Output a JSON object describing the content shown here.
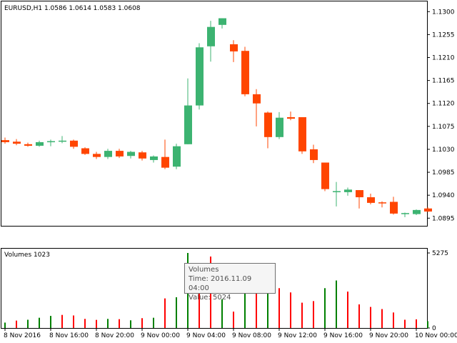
{
  "header": {
    "symbol_line": "EURUSD,H1  1.0586 1.0614 1.0583 1.0608",
    "volumes_label": "Volumes 1023"
  },
  "colors": {
    "bull": "#3cb371",
    "bear": "#ff4500",
    "volume_up": "#008000",
    "volume_down": "#ff0000",
    "frame": "#000000"
  },
  "tooltip": {
    "title": "Volumes",
    "time": "Time: 2016.11.09 04:00",
    "value": "Value: 5024"
  },
  "chart_data": {
    "type": "candlestick",
    "price_axis": {
      "ticks": [
        "1.1300",
        "1.1255",
        "1.1210",
        "1.1165",
        "1.1120",
        "1.1075",
        "1.1030",
        "1.0985",
        "1.0940",
        "1.0895"
      ],
      "range": [
        1.088,
        1.132
      ]
    },
    "volume_axis": {
      "ticks": [
        "5275",
        "0"
      ],
      "range": [
        0,
        5275
      ]
    },
    "time_labels": [
      "8 Nov 2016",
      "8 Nov 16:00",
      "8 Nov 20:00",
      "9 Nov 00:00",
      "9 Nov 04:00",
      "9 Nov 08:00",
      "9 Nov 12:00",
      "9 Nov 16:00",
      "9 Nov 20:00",
      "10 Nov 00:00"
    ],
    "candles": [
      {
        "o": 1.1048,
        "h": 1.1053,
        "l": 1.1041,
        "c": 1.1044
      },
      {
        "o": 1.1045,
        "h": 1.105,
        "l": 1.1038,
        "c": 1.1041
      },
      {
        "o": 1.104,
        "h": 1.1043,
        "l": 1.1035,
        "c": 1.1037
      },
      {
        "o": 1.1037,
        "h": 1.1047,
        "l": 1.1035,
        "c": 1.1044
      },
      {
        "o": 1.1045,
        "h": 1.1049,
        "l": 1.1036,
        "c": 1.1046
      },
      {
        "o": 1.1045,
        "h": 1.1056,
        "l": 1.1042,
        "c": 1.1047
      },
      {
        "o": 1.1047,
        "h": 1.1049,
        "l": 1.1031,
        "c": 1.1035
      },
      {
        "o": 1.1032,
        "h": 1.1034,
        "l": 1.1019,
        "c": 1.1021
      },
      {
        "o": 1.1021,
        "h": 1.1025,
        "l": 1.1011,
        "c": 1.1015
      },
      {
        "o": 1.1015,
        "h": 1.1031,
        "l": 1.1011,
        "c": 1.1027
      },
      {
        "o": 1.1027,
        "h": 1.1031,
        "l": 1.1013,
        "c": 1.1016
      },
      {
        "o": 1.1017,
        "h": 1.1027,
        "l": 1.1012,
        "c": 1.1025
      },
      {
        "o": 1.1024,
        "h": 1.1027,
        "l": 1.1008,
        "c": 1.1012
      },
      {
        "o": 1.1009,
        "h": 1.1018,
        "l": 1.1004,
        "c": 1.1016
      },
      {
        "o": 1.1015,
        "h": 1.1049,
        "l": 1.0991,
        "c": 1.0994
      },
      {
        "o": 1.0996,
        "h": 1.1041,
        "l": 1.0991,
        "c": 1.1036
      },
      {
        "o": 1.104,
        "h": 1.1169,
        "l": 1.104,
        "c": 1.1116
      },
      {
        "o": 1.1116,
        "h": 1.1238,
        "l": 1.1108,
        "c": 1.123
      },
      {
        "o": 1.1232,
        "h": 1.1282,
        "l": 1.1202,
        "c": 1.127
      },
      {
        "o": 1.1274,
        "h": 1.1287,
        "l": 1.1267,
        "c": 1.1287
      },
      {
        "o": 1.1236,
        "h": 1.1244,
        "l": 1.1201,
        "c": 1.1222
      },
      {
        "o": 1.1223,
        "h": 1.1231,
        "l": 1.1134,
        "c": 1.1138
      },
      {
        "o": 1.1138,
        "h": 1.1148,
        "l": 1.1075,
        "c": 1.112
      },
      {
        "o": 1.1102,
        "h": 1.1104,
        "l": 1.1032,
        "c": 1.1054
      },
      {
        "o": 1.1054,
        "h": 1.1103,
        "l": 1.105,
        "c": 1.1092
      },
      {
        "o": 1.1093,
        "h": 1.1104,
        "l": 1.1087,
        "c": 1.109
      },
      {
        "o": 1.1093,
        "h": 1.1093,
        "l": 1.1021,
        "c": 1.1026
      },
      {
        "o": 1.103,
        "h": 1.1039,
        "l": 1.1003,
        "c": 1.1009
      },
      {
        "o": 1.1004,
        "h": 1.1004,
        "l": 1.0948,
        "c": 1.0952
      },
      {
        "o": 1.0948,
        "h": 1.0966,
        "l": 1.0918,
        "c": 1.0948
      },
      {
        "o": 1.0946,
        "h": 1.0955,
        "l": 1.0939,
        "c": 1.0951
      },
      {
        "o": 1.095,
        "h": 1.095,
        "l": 1.0914,
        "c": 1.0936
      },
      {
        "o": 1.0936,
        "h": 1.0943,
        "l": 1.0922,
        "c": 1.0925
      },
      {
        "o": 1.0926,
        "h": 1.0928,
        "l": 1.0916,
        "c": 1.0924
      },
      {
        "o": 1.0927,
        "h": 1.0937,
        "l": 1.0902,
        "c": 1.0904
      },
      {
        "o": 1.0905,
        "h": 1.0906,
        "l": 1.0897,
        "c": 1.0905
      },
      {
        "o": 1.0903,
        "h": 1.0912,
        "l": 1.0901,
        "c": 1.0911
      },
      {
        "o": 1.0914,
        "h": 1.0917,
        "l": 1.0907,
        "c": 1.0908
      }
    ],
    "volumes": [
      {
        "v": 380,
        "up": true
      },
      {
        "v": 520,
        "up": false
      },
      {
        "v": 580,
        "up": true
      },
      {
        "v": 720,
        "up": true
      },
      {
        "v": 850,
        "up": true
      },
      {
        "v": 920,
        "up": false
      },
      {
        "v": 880,
        "up": false
      },
      {
        "v": 640,
        "up": false
      },
      {
        "v": 570,
        "up": false
      },
      {
        "v": 640,
        "up": true
      },
      {
        "v": 620,
        "up": false
      },
      {
        "v": 540,
        "up": true
      },
      {
        "v": 690,
        "up": false
      },
      {
        "v": 720,
        "up": true
      },
      {
        "v": 2080,
        "up": false
      },
      {
        "v": 2160,
        "up": true
      },
      {
        "v": 5275,
        "up": true
      },
      {
        "v": 4520,
        "up": false
      },
      {
        "v": 5024,
        "up": false
      },
      {
        "v": 2020,
        "up": true
      },
      {
        "v": 1150,
        "up": false
      },
      {
        "v": 2900,
        "up": true
      },
      {
        "v": 3100,
        "up": false
      },
      {
        "v": 2880,
        "up": true
      },
      {
        "v": 2800,
        "up": false
      },
      {
        "v": 2500,
        "up": false
      },
      {
        "v": 1780,
        "up": false
      },
      {
        "v": 1890,
        "up": false
      },
      {
        "v": 2800,
        "up": true
      },
      {
        "v": 3340,
        "up": true
      },
      {
        "v": 2560,
        "up": false
      },
      {
        "v": 1660,
        "up": false
      },
      {
        "v": 1480,
        "up": false
      },
      {
        "v": 1330,
        "up": false
      },
      {
        "v": 1090,
        "up": false
      },
      {
        "v": 580,
        "up": false
      },
      {
        "v": 610,
        "up": false
      },
      {
        "v": 480,
        "up": true
      }
    ]
  }
}
